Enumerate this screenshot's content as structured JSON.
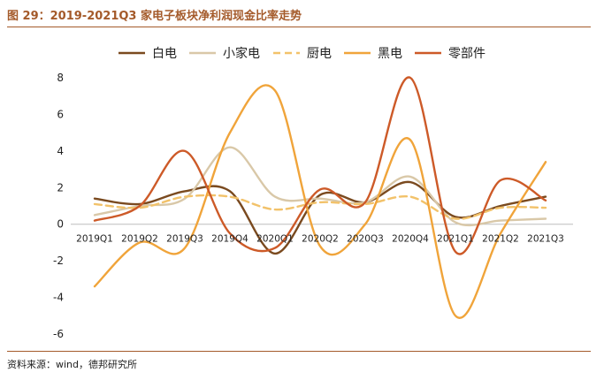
{
  "figure": {
    "title": "图 29：2019-2021Q3 家电子板块净利润现金比率走势",
    "source": "资料来源：wind，德邦研究所"
  },
  "chart_data": {
    "type": "line",
    "categories": [
      "2019Q1",
      "2019Q2",
      "2019Q3",
      "2019Q4",
      "2020Q1",
      "2020Q2",
      "2020Q3",
      "2020Q4",
      "2021Q1",
      "2021Q2",
      "2021Q3"
    ],
    "ylim": [
      -6,
      8
    ],
    "yticks": [
      -6,
      -4,
      -2,
      0,
      2,
      4,
      6,
      8
    ],
    "grid": false,
    "legend_position": "top",
    "series": [
      {
        "name": "白电",
        "color": "#7a4a1f",
        "dash": "",
        "values": [
          1.4,
          1.1,
          1.8,
          1.8,
          -1.6,
          1.6,
          1.2,
          2.3,
          0.4,
          1.0,
          1.5
        ]
      },
      {
        "name": "小家电",
        "color": "#d9c8a8",
        "dash": "",
        "values": [
          0.5,
          1.0,
          1.4,
          4.2,
          1.5,
          1.4,
          1.2,
          2.6,
          0.1,
          0.2,
          0.3
        ]
      },
      {
        "name": "厨电",
        "color": "#f2c26a",
        "dash": "8,5",
        "values": [
          1.1,
          0.9,
          1.5,
          1.5,
          0.8,
          1.2,
          1.1,
          1.5,
          0.3,
          0.9,
          0.9
        ]
      },
      {
        "name": "黑电",
        "color": "#f0a43a",
        "dash": "",
        "values": [
          -3.4,
          -1.0,
          -1.3,
          5.0,
          7.3,
          -1.2,
          0.0,
          4.6,
          -5.0,
          -0.5,
          3.4
        ]
      },
      {
        "name": "零部件",
        "color": "#cd5a28",
        "dash": "",
        "values": [
          0.2,
          1.0,
          4.0,
          -0.5,
          -1.3,
          1.9,
          1.2,
          8.0,
          -1.5,
          2.4,
          1.3
        ]
      }
    ]
  }
}
